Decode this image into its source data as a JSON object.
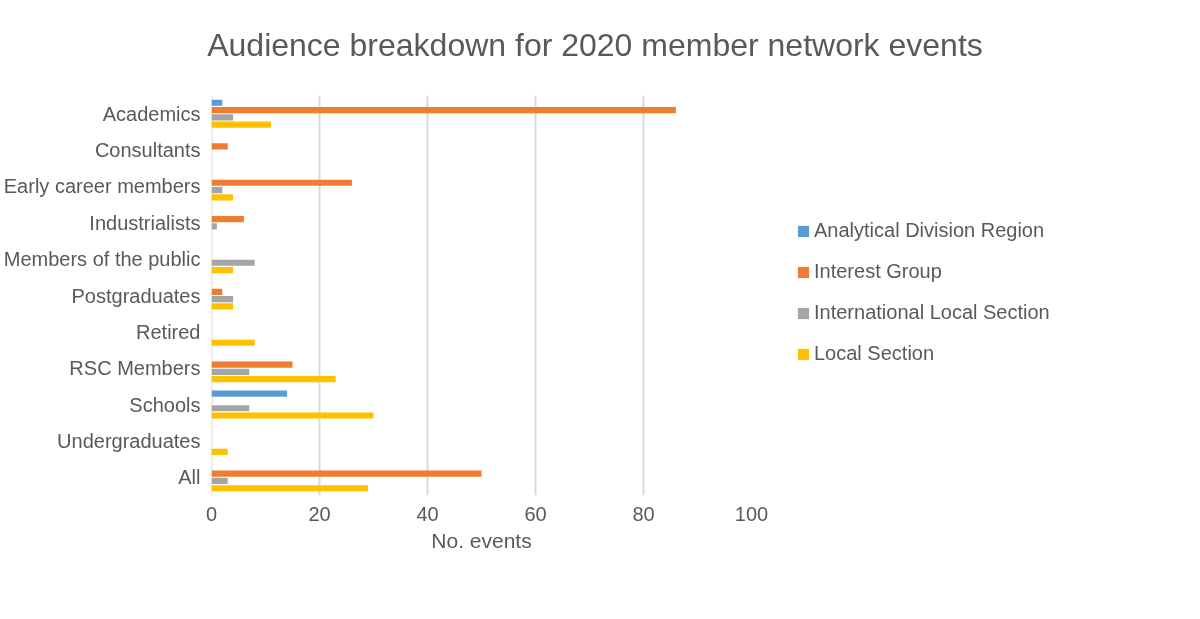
{
  "chart_data": {
    "type": "bar",
    "orientation": "horizontal",
    "title": "Audience breakdown for 2020 member network events",
    "xlabel": "No. events",
    "categories": [
      "Academics",
      "Consultants",
      "Early career members",
      "Industrialists",
      "Members of the public",
      "Postgraduates",
      "Retired",
      "RSC Members",
      "Schools",
      "Undergraduates",
      "All"
    ],
    "series": [
      {
        "name": "Analytical Division Region",
        "color": "#5b9bd5",
        "values": [
          2,
          null,
          null,
          null,
          null,
          null,
          null,
          null,
          14,
          null,
          null
        ]
      },
      {
        "name": "Interest Group",
        "color": "#ed7d31",
        "values": [
          86,
          3,
          26,
          6,
          null,
          2,
          null,
          15,
          null,
          null,
          50
        ]
      },
      {
        "name": "International Local Section",
        "color": "#a5a5a5",
        "values": [
          4,
          null,
          2,
          1,
          8,
          4,
          null,
          7,
          7,
          null,
          3
        ]
      },
      {
        "name": "Local Section",
        "color": "#ffc000",
        "values": [
          11,
          null,
          4,
          null,
          4,
          4,
          8,
          23,
          30,
          3,
          29
        ]
      }
    ],
    "xlim": [
      0,
      100
    ],
    "xticks": [
      0,
      20,
      40,
      60,
      80,
      100
    ],
    "grid": "x",
    "legend": "right"
  }
}
